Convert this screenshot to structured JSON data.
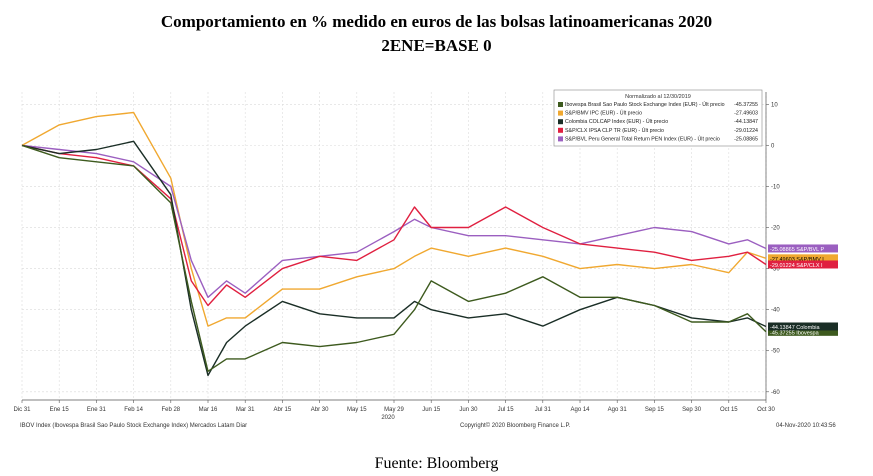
{
  "title": "Comportamiento en % medido en euros de las bolsas latinoamericanas 2020",
  "subtitle": "2ENE=BASE 0",
  "source": "Fuente: Bloomberg",
  "footer": {
    "left": "IBOV Index (Ibovespa Brasil Sao Paulo Stock Exchange Index) Mercados Latam  Diar",
    "center": "Copyright© 2020 Bloomberg Finance L.P.",
    "right": "04-Nov-2020 10:43:56"
  },
  "chart_data": {
    "type": "line",
    "legend_title": "Normalizado al 12/30/2019",
    "legend_position": "top-right",
    "x_axis_year": "2020",
    "x_ticks": [
      "Dic 31",
      "Ene 15",
      "Ene 31",
      "Feb 14",
      "Feb 28",
      "Mar 16",
      "Mar 31",
      "Abr 15",
      "Abr 30",
      "May 15",
      "May 29",
      "Jun 15",
      "Jun 30",
      "Jul 15",
      "Jul 31",
      "Ago 14",
      "Ago 31",
      "Sep 15",
      "Sep 30",
      "Oct 15",
      "Oct 30"
    ],
    "y_ticks": [
      10,
      0,
      -10,
      -20,
      -30,
      -40,
      -50,
      -60
    ],
    "ylim": [
      -62,
      13
    ],
    "grid": true,
    "x": [
      "Dic 31",
      "Ene 15",
      "Ene 31",
      "Feb 14",
      "Feb 28",
      "Mar 10",
      "Mar 16",
      "Mar 23",
      "Mar 31",
      "Abr 15",
      "Abr 30",
      "May 15",
      "May 29",
      "Jun 8",
      "Jun 15",
      "Jun 30",
      "Jul 15",
      "Jul 31",
      "Ago 14",
      "Ago 31",
      "Sep 15",
      "Sep 30",
      "Oct 15",
      "Oct 23",
      "Oct 30"
    ],
    "series": [
      {
        "name": "Ibovespa Brasil Sao Paulo Stock Exchange Index (EUR) - Últ precio",
        "last_value": "-45.37255",
        "tag": "-45.37255 Ibovespa",
        "color": "#3d5a1e",
        "values": [
          0,
          -3,
          -4,
          -5,
          -14,
          -38,
          -55,
          -52,
          -52,
          -48,
          -49,
          -48,
          -46,
          -40,
          -33,
          -38,
          -36,
          -32,
          -37,
          -37,
          -39,
          -43,
          -43,
          -41,
          -45.4
        ]
      },
      {
        "name": "S&P/BMV IPC (EUR) - Últ precio",
        "last_value": "-27.49603",
        "tag": "-27.49603 S&P/BMV I",
        "color": "#f0a830",
        "values": [
          0,
          5,
          7,
          8,
          -8,
          -30,
          -44,
          -42,
          -42,
          -35,
          -35,
          -32,
          -30,
          -27,
          -25,
          -27,
          -25,
          -27,
          -30,
          -29,
          -30,
          -29,
          -31,
          -26,
          -27.5
        ]
      },
      {
        "name": "Colombia COLCAP Index (EUR) - Últ precio",
        "last_value": "-44.13847",
        "tag": "-44.13847 Colombia",
        "color": "#1a2e26",
        "values": [
          0,
          -2,
          -1,
          1,
          -12,
          -40,
          -56,
          -48,
          -44,
          -38,
          -41,
          -42,
          -42,
          -38,
          -40,
          -42,
          -41,
          -44,
          -40,
          -37,
          -39,
          -42,
          -43,
          -42,
          -44.1
        ]
      },
      {
        "name": "S&P/CLX IPSA CLP TR (EUR) - Últ precio",
        "last_value": "-29.01224",
        "tag": "-29.01224 S&P/CLX I",
        "color": "#e02040",
        "values": [
          0,
          -2,
          -3,
          -5,
          -13,
          -33,
          -39,
          -34,
          -37,
          -30,
          -27,
          -28,
          -23,
          -15,
          -20,
          -20,
          -15,
          -20,
          -24,
          -25,
          -26,
          -28,
          -27,
          -26,
          -29
        ]
      },
      {
        "name": "S&P/BVL Peru General Total Return PEN Index (EUR) - Últ precio",
        "last_value": "-25.08865",
        "tag": "-25.08865 S&P/BVL P",
        "color": "#9b5fc0",
        "values": [
          0,
          -1,
          -2,
          -4,
          -10,
          -28,
          -37,
          -33,
          -36,
          -28,
          -27,
          -26,
          -21,
          -18,
          -20,
          -22,
          -22,
          -23,
          -24,
          -22,
          -20,
          -21,
          -24,
          -23,
          -25.1
        ]
      }
    ]
  }
}
